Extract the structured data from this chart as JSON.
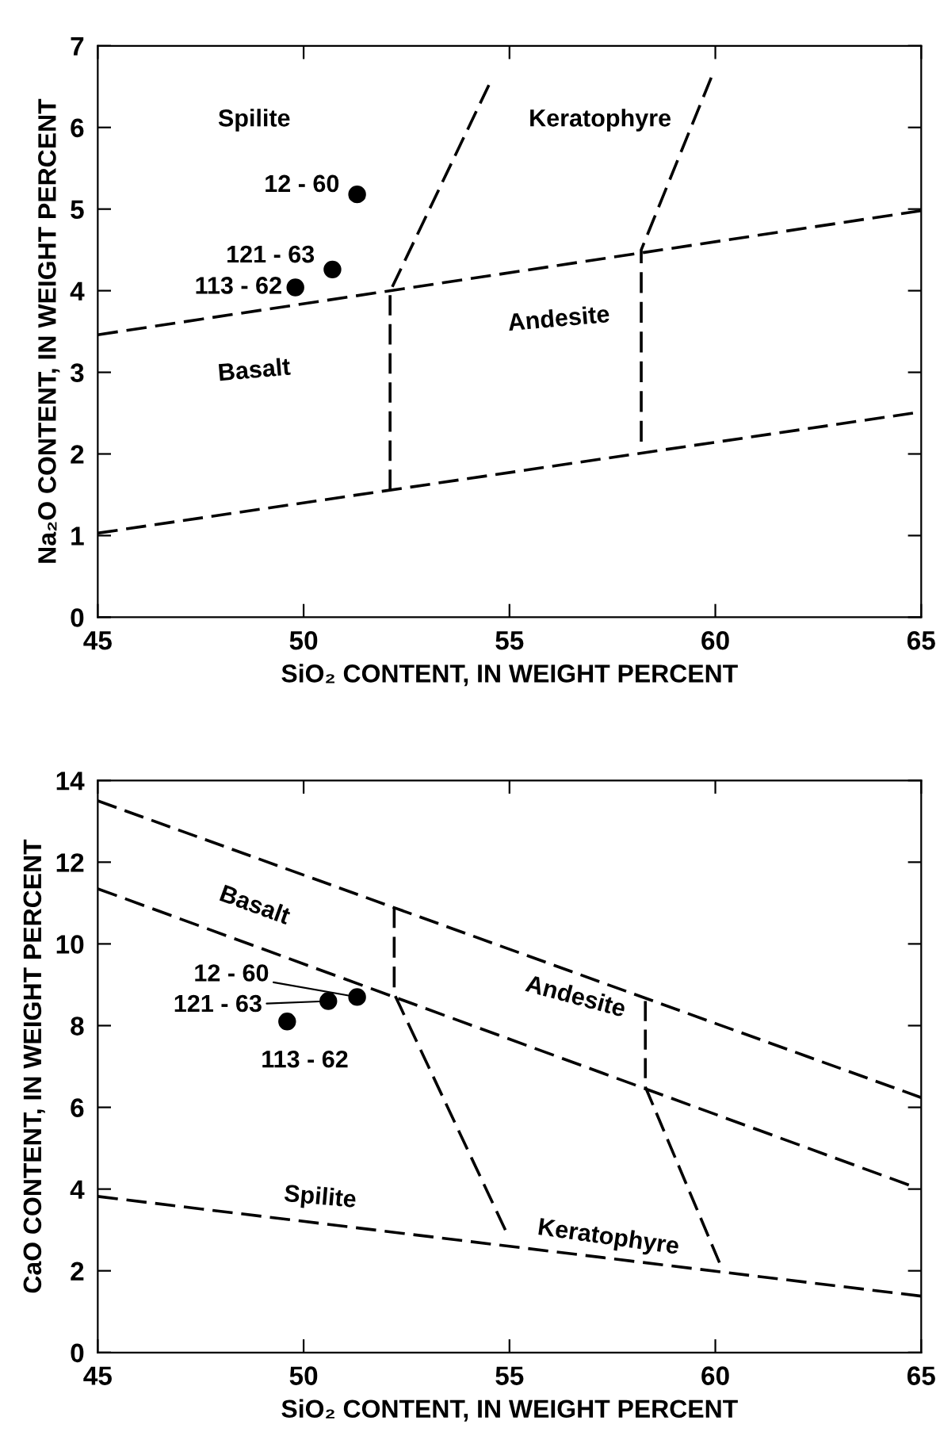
{
  "chart_data": [
    {
      "type": "scatter",
      "xlabel": "SiO₂ CONTENT, IN WEIGHT PERCENT",
      "ylabel": "Na₂O CONTENT, IN WEIGHT PERCENT",
      "xlim": [
        45,
        65
      ],
      "ylim": [
        0,
        7
      ],
      "xticks": [
        45,
        50,
        55,
        60,
        65
      ],
      "yticks": [
        0,
        1,
        2,
        3,
        4,
        5,
        6,
        7
      ],
      "grid": false,
      "legend": false,
      "series": [
        {
          "x": [
            51.3,
            50.7,
            49.8
          ],
          "values": [
            5.18,
            4.26,
            4.04
          ],
          "color": "#000000",
          "marker": "circle"
        },
        {
          "type": "line",
          "x": [
            45,
            65
          ],
          "values": [
            3.46,
            4.98
          ],
          "color": "#000000",
          "line_style": "dashed",
          "marker": "none"
        },
        {
          "type": "line",
          "x": [
            45,
            64.8
          ],
          "values": [
            1.03,
            2.5
          ],
          "color": "#000000",
          "line_style": "dashed",
          "marker": "none"
        },
        {
          "type": "line",
          "x": [
            52.1,
            52.1,
            54.5
          ],
          "values": [
            1.56,
            3.99,
            6.52
          ],
          "color": "#000000",
          "line_style": "dashed",
          "marker": "none"
        },
        {
          "type": "line",
          "x": [
            58.2,
            58.2,
            59.9
          ],
          "values": [
            2.15,
            4.5,
            6.61
          ],
          "color": "#000000",
          "line_style": "dashed",
          "marker": "none"
        }
      ],
      "annotations": [
        {
          "text": "12 - 60",
          "x": 51.3,
          "y": 5.18
        },
        {
          "text": "121 - 63",
          "x": 50.7,
          "y": 4.26
        },
        {
          "text": "113 - 62",
          "x": 49.8,
          "y": 4.04
        },
        "Spilite",
        "Keratophyre",
        "Andesite",
        "Basalt"
      ]
    },
    {
      "type": "scatter",
      "xlabel": "SiO₂ CONTENT, IN WEIGHT PERCENT",
      "ylabel": "CaO CONTENT, IN WEIGHT PERCENT",
      "xlim": [
        45,
        65
      ],
      "ylim": [
        0,
        14
      ],
      "xticks": [
        45,
        50,
        55,
        60,
        65
      ],
      "yticks": [
        0,
        2,
        4,
        6,
        8,
        10,
        12,
        14
      ],
      "grid": false,
      "legend": false,
      "series": [
        {
          "x": [
            51.3,
            50.6,
            49.6
          ],
          "values": [
            8.7,
            8.6,
            8.1
          ],
          "color": "#000000",
          "marker": "circle"
        },
        {
          "type": "line",
          "x": [
            45,
            65
          ],
          "values": [
            13.5,
            6.24
          ],
          "color": "#000000",
          "line_style": "dashed",
          "marker": "none"
        },
        {
          "type": "line",
          "x": [
            45,
            64.7
          ],
          "values": [
            11.35,
            4.1
          ],
          "color": "#000000",
          "line_style": "dashed",
          "marker": "none"
        },
        {
          "type": "line",
          "x": [
            45,
            65
          ],
          "values": [
            3.82,
            1.38
          ],
          "color": "#000000",
          "line_style": "dashed",
          "marker": "none"
        },
        {
          "type": "line",
          "x": [
            52.2,
            52.2,
            54.9
          ],
          "values": [
            10.9,
            8.78,
            3.0
          ],
          "color": "#000000",
          "line_style": "dashed",
          "marker": "none"
        },
        {
          "type": "line",
          "x": [
            58.3,
            58.3,
            60.1
          ],
          "values": [
            8.6,
            6.5,
            2.2
          ],
          "color": "#000000",
          "line_style": "dashed",
          "marker": "none"
        }
      ],
      "annotations": [
        {
          "text": "12 - 60",
          "x": 51.3,
          "y": 8.7
        },
        {
          "text": "121 - 63",
          "x": 50.6,
          "y": 8.6
        },
        {
          "text": "113 - 62",
          "x": 49.6,
          "y": 8.1
        },
        "Basalt",
        "Andesite",
        "Spilite",
        "Keratophyre"
      ]
    }
  ]
}
